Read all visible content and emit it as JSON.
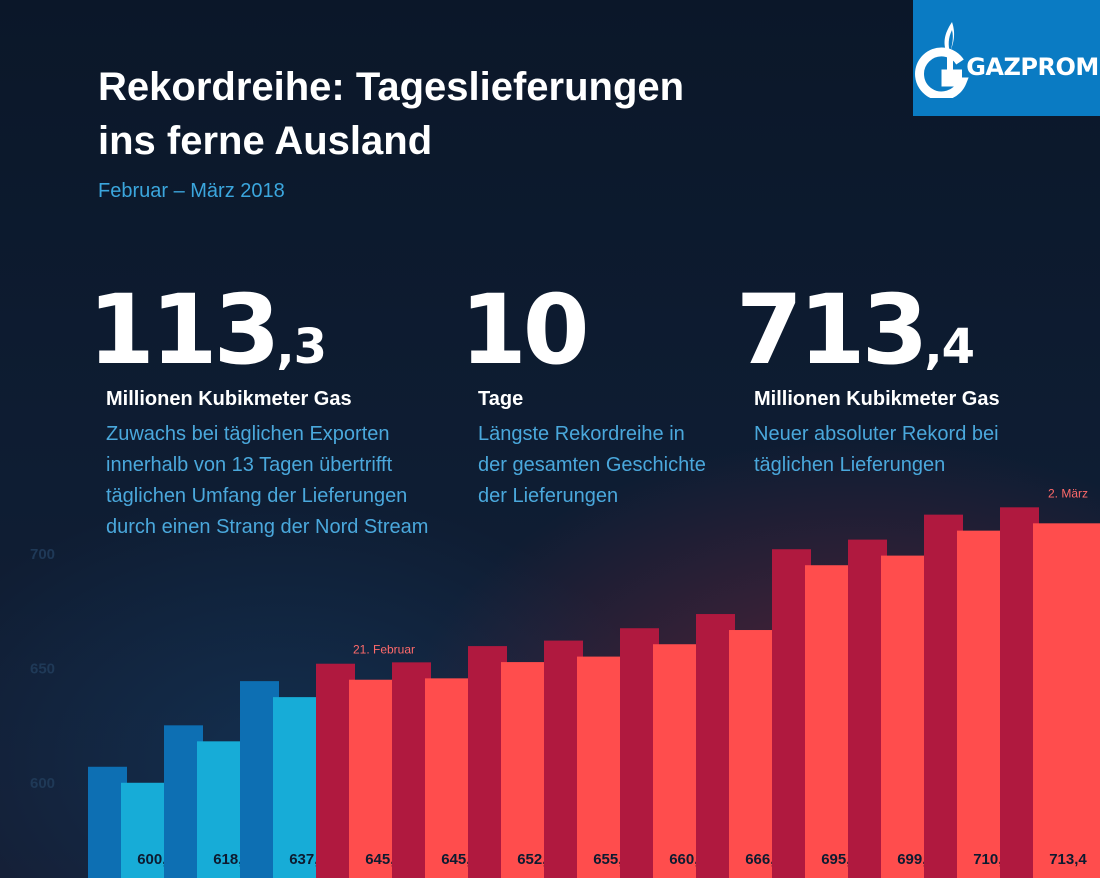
{
  "header": {
    "title_line1": "Rekordreihe: Tageslieferungen",
    "title_line2": "ins ferne Ausland",
    "subtitle": "Februar – März 2018"
  },
  "logo": {
    "text": "GAZPROM",
    "icon": "gazprom-flame-icon",
    "color": "#0a7bc3"
  },
  "stats": [
    {
      "value_int": "113",
      "value_dec": ",3",
      "unit": "Millionen Kubikmeter Gas",
      "desc_lines": [
        "Zuwachs bei täglichen Exporten",
        "innerhalb von 13 Tagen übertrifft",
        "täglichen Umfang der Lieferungen",
        "durch einen Strang der Nord Stream"
      ]
    },
    {
      "value_int": "10",
      "value_dec": "",
      "unit": "Tage",
      "desc_lines": [
        "Längste Rekordreihe in",
        "der gesamten Geschichte",
        "der Lieferungen"
      ]
    },
    {
      "value_int": "713",
      "value_dec": ",4",
      "unit": "Millionen Kubikmeter Gas",
      "desc_lines": [
        "Neuer absoluter Rekord bei",
        "täglichen Lieferungen"
      ]
    }
  ],
  "chart_data": {
    "type": "bar",
    "values": [
      600.1,
      618.2,
      637.5,
      645.1,
      645.7,
      652.8,
      655.2,
      660.6,
      666.8,
      695.1,
      699.3,
      710.2,
      713.4
    ],
    "value_labels": [
      "600,1",
      "618,2",
      "637,5",
      "645,1",
      "645,7",
      "652,8",
      "655,2",
      "660,6",
      "666,8",
      "695,1",
      "699,3",
      "710,2",
      "713,4"
    ],
    "yticks": [
      600,
      650,
      700
    ],
    "annotations": [
      {
        "index": 3,
        "text": "21. Februar"
      },
      {
        "index": 12,
        "text": "2. März"
      }
    ],
    "record_start_index": 3,
    "colors": {
      "pre_front": "#17acd7",
      "pre_side": "#0d6fb3",
      "rec_front": "#ff4d4d",
      "rec_side": "#b0193f"
    }
  }
}
